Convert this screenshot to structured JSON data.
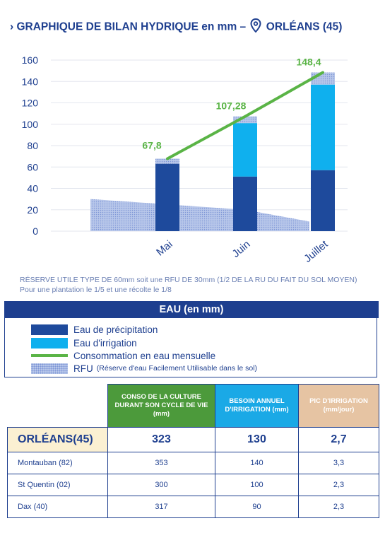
{
  "header": {
    "title_left": "› GRAPHIQUE DE BILAN HYDRIQUE en mm –",
    "title_right": "ORLÉANS (45)"
  },
  "colors": {
    "precipitation": "#1e4a9c",
    "irrigation": "#0fb0ee",
    "consumption": "#5ab446",
    "rfu": "#b8c7ea",
    "navy": "#1e3f8f"
  },
  "chart_data": {
    "type": "bar",
    "categories": [
      "Mai",
      "Juin",
      "Juillet"
    ],
    "series": [
      {
        "name": "Eau de précipitation",
        "values": [
          63,
          51,
          57
        ]
      },
      {
        "name": "Eau d'irrigation",
        "values": [
          0,
          50,
          80
        ]
      },
      {
        "name": "Consommation en eau mensuelle",
        "type": "line",
        "values": [
          67.8,
          107.28,
          148.4
        ]
      }
    ],
    "rfu": {
      "name": "RFU",
      "values": [
        30,
        20,
        9
      ]
    },
    "data_labels": [
      "67,8",
      "107,28",
      "148,4"
    ],
    "yticks": [
      "0",
      "20",
      "40",
      "60",
      "80",
      "100",
      "120",
      "140",
      "160"
    ],
    "ylim": [
      0,
      160
    ],
    "grid": true
  },
  "note": {
    "line1": "RÉSERVE UTILE TYPE DE 60mm soit une RFU DE 30mm (1/2 DE LA RU DU FAIT DU SOL MOYEN)",
    "line2": "Pour une plantation le 1/5 et une récolte le 1/8"
  },
  "legend": {
    "title": "EAU (en mm)",
    "items": [
      {
        "label": "Eau de précipitation"
      },
      {
        "label": "Eau d'irrigation"
      },
      {
        "label": "Consommation en eau mensuelle"
      },
      {
        "label": "RFU",
        "sub": "(Réserve d'eau Facilement Utilisable dans le sol)"
      }
    ]
  },
  "table": {
    "headers": [
      "CONSO DE LA CULTURE DURANT SON CYCLE DE VIE (mm)",
      "BESOIN ANNUEL D'IRRIGATION (mm)",
      "PIC D'IRRIGATION (mm/jour)"
    ],
    "rows": [
      {
        "city": "ORLÉANS(45)",
        "conso": "323",
        "besoin": "130",
        "pic": "2,7"
      },
      {
        "city": "Montauban (82)",
        "conso": "353",
        "besoin": "140",
        "pic": "3,3"
      },
      {
        "city": "St Quentin (02)",
        "conso": "300",
        "besoin": "100",
        "pic": "2,3"
      },
      {
        "city": "Dax (40)",
        "conso": "317",
        "besoin": "90",
        "pic": "2,3"
      }
    ]
  }
}
